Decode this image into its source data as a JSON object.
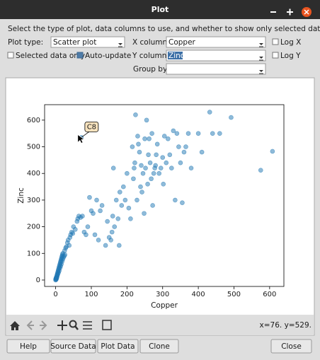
{
  "window": {
    "title": "Plot"
  },
  "instructions": "Select the type of plot, data columns to use, and whether to show only selected data.",
  "controls": {
    "plot_type_label": "Plot type:",
    "plot_type": "Scatter plot",
    "x_column_label": "X column:",
    "x_column": "Copper",
    "y_column_label": "Y column:",
    "y_column": "Zinc",
    "group_by_label": "Group by:",
    "log_x": "Log X",
    "log_y": "Log Y",
    "selected_only": "Selected data only",
    "auto_update": "Auto-update"
  },
  "chart_data": {
    "type": "scatter",
    "color": "#1f77b4",
    "xlabel": "Copper",
    "ylabel": "Zinc",
    "xlim": [
      -31,
      640
    ],
    "ylim": [
      -24,
      658
    ],
    "xticks": [
      0,
      100,
      200,
      300,
      400,
      500,
      600
    ],
    "yticks": [
      0,
      100,
      200,
      300,
      400,
      500,
      600
    ],
    "annotation": {
      "text": "C8",
      "x": 72,
      "y": 535
    },
    "x": [
      0,
      1,
      2,
      3,
      4,
      5,
      6,
      7,
      8,
      9,
      10,
      11,
      12,
      13,
      14,
      15,
      16,
      17,
      18,
      19,
      20,
      1,
      2,
      3,
      4,
      5,
      6,
      8,
      10,
      12,
      14,
      16,
      18,
      20,
      22,
      24,
      26,
      0,
      1,
      25,
      28,
      30,
      33,
      35,
      38,
      40,
      42,
      45,
      48,
      50,
      55,
      60,
      62,
      65,
      70,
      75,
      80,
      85,
      90,
      95,
      100,
      105,
      110,
      115,
      120,
      125,
      130,
      140,
      145,
      150,
      155,
      158,
      160,
      162,
      165,
      170,
      175,
      178,
      180,
      185,
      190,
      195,
      200,
      205,
      210,
      215,
      218,
      220,
      222,
      224,
      228,
      230,
      232,
      235,
      238,
      240,
      242,
      245,
      248,
      250,
      252,
      255,
      258,
      260,
      262,
      265,
      268,
      270,
      272,
      275,
      278,
      280,
      282,
      285,
      290,
      295,
      300,
      302,
      305,
      310,
      315,
      320,
      325,
      330,
      335,
      340,
      345,
      350,
      355,
      360,
      365,
      372,
      380,
      400,
      410,
      432,
      440,
      460,
      492,
      575,
      608,
      72
    ],
    "y": [
      0,
      5,
      10,
      15,
      20,
      25,
      30,
      35,
      40,
      45,
      50,
      55,
      60,
      65,
      70,
      75,
      80,
      85,
      90,
      95,
      100,
      2,
      4,
      8,
      12,
      18,
      22,
      28,
      35,
      45,
      52,
      60,
      70,
      78,
      85,
      90,
      95,
      3,
      8,
      110,
      120,
      125,
      140,
      150,
      130,
      160,
      170,
      180,
      175,
      200,
      190,
      220,
      230,
      240,
      235,
      240,
      180,
      170,
      200,
      310,
      260,
      250,
      170,
      300,
      150,
      260,
      280,
      130,
      220,
      160,
      150,
      180,
      240,
      420,
      200,
      300,
      230,
      130,
      330,
      280,
      350,
      300,
      400,
      270,
      230,
      500,
      380,
      420,
      440,
      620,
      300,
      540,
      510,
      480,
      350,
      430,
      330,
      400,
      250,
      530,
      420,
      600,
      360,
      470,
      530,
      440,
      380,
      550,
      280,
      400,
      420,
      430,
      470,
      510,
      400,
      420,
      460,
      360,
      540,
      440,
      530,
      470,
      420,
      560,
      300,
      550,
      500,
      440,
      290,
      480,
      500,
      550,
      420,
      550,
      480,
      630,
      550,
      550,
      610,
      412,
      483,
      535
    ]
  },
  "toolbar": {
    "status": "x=76. y=529."
  },
  "buttons": [
    "Help",
    "Source Data",
    "Plot Data",
    "Clone",
    "Close"
  ]
}
